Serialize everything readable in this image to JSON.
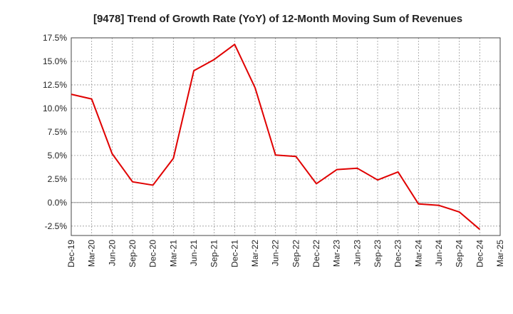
{
  "chart_data": {
    "type": "line",
    "title": "[9478]  Trend of Growth Rate (YoY) of 12-Month Moving Sum of Revenues",
    "xlabel": "",
    "ylabel": "",
    "x_ticks": [
      "Dec-19",
      "Mar-20",
      "Jun-20",
      "Sep-20",
      "Dec-20",
      "Mar-21",
      "Jun-21",
      "Sep-21",
      "Dec-21",
      "Mar-22",
      "Jun-22",
      "Sep-22",
      "Dec-22",
      "Mar-23",
      "Jun-23",
      "Sep-23",
      "Dec-23",
      "Mar-24",
      "Jun-24",
      "Sep-24",
      "Dec-24",
      "Mar-25"
    ],
    "y_ticks": [
      "17.5%",
      "15.0%",
      "12.5%",
      "10.0%",
      "7.5%",
      "5.0%",
      "2.5%",
      "0.0%",
      "-2.5%"
    ],
    "y_tick_values": [
      17.5,
      15.0,
      12.5,
      10.0,
      7.5,
      5.0,
      2.5,
      0.0,
      -2.5
    ],
    "ylim": [
      -3.5,
      17.5
    ],
    "grid": true,
    "series": [
      {
        "color": "#e00000",
        "x": [
          "Dec-19",
          "Mar-20",
          "Jun-20",
          "Sep-20",
          "Dec-20",
          "Mar-21",
          "Jun-21",
          "Sep-21",
          "Dec-21",
          "Mar-22",
          "Jun-22",
          "Sep-22",
          "Dec-22",
          "Mar-23",
          "Jun-23",
          "Sep-23",
          "Dec-23",
          "Mar-24",
          "Jun-24",
          "Sep-24",
          "Dec-24"
        ],
        "values": [
          11.5,
          11.0,
          5.2,
          2.2,
          1.85,
          4.7,
          14.0,
          15.2,
          16.8,
          12.2,
          5.05,
          4.9,
          2.0,
          3.5,
          3.65,
          2.4,
          3.25,
          -0.15,
          -0.3,
          -1.0,
          -2.85
        ]
      }
    ]
  }
}
